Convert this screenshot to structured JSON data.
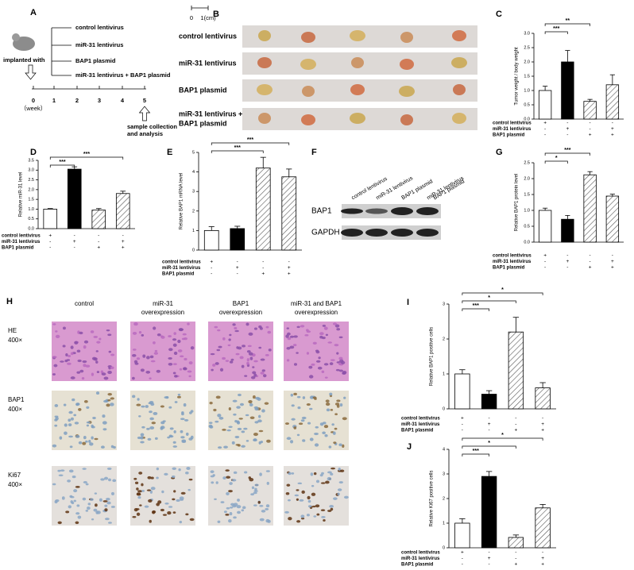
{
  "panel_a": {
    "label": "A",
    "groups": [
      "control lentivirus",
      "miR-31 lentivirus",
      "BAP1 plasmid",
      "miR-31 lentivirus + BAP1 plasmid"
    ],
    "implant": "implanted with",
    "weeks": [
      "0",
      "1",
      "2",
      "3",
      "4",
      "5"
    ],
    "unit": "（week）",
    "endpoint": [
      "sample collection",
      "and analysis"
    ]
  },
  "panel_b": {
    "label": "B",
    "scale": [
      "0",
      "1(cm)"
    ],
    "rows": [
      [
        "control lentivirus"
      ],
      [
        "miR-31 lentivirus"
      ],
      [
        "BAP1 plasmid"
      ],
      [
        "miR-31 lentivirus +",
        "BAP1 plasmid"
      ]
    ]
  },
  "panel_f": {
    "label": "F",
    "lanes": [
      [
        "control lentivirus"
      ],
      [
        "miR-31 lentivirus"
      ],
      [
        "BAP1 plasmid"
      ],
      [
        "miR-31 lentivirus",
        "BAP1 plasmid"
      ]
    ],
    "rows": [
      "BAP1",
      "GAPDH"
    ]
  },
  "panel_h": {
    "label": "H",
    "columns": [
      [
        "control"
      ],
      [
        "miR-31",
        "overexpression"
      ],
      [
        "BAP1",
        "overexpression"
      ],
      [
        "miR-31 and BAP1",
        "overexpression"
      ]
    ],
    "rows": [
      [
        "HE",
        "400×"
      ],
      [
        "BAP1",
        "400×"
      ],
      [
        "Ki67",
        "400×"
      ]
    ]
  },
  "chart_data": [
    {
      "type": "bar",
      "label": "C",
      "ylabel": "Tumor weight / body weight",
      "values": [
        1.0,
        2.0,
        0.62,
        1.2
      ],
      "errors": [
        0.15,
        0.4,
        0.07,
        0.35
      ],
      "fills": [
        "#ffffff",
        "#000000",
        "hatch",
        "hatch"
      ],
      "ylim": [
        0,
        3
      ],
      "yticks": [
        {
          "value": 0,
          "label": "0.0"
        },
        0.5,
        {
          "value": 1,
          "label": "1.0"
        },
        1.5,
        {
          "value": 2,
          "label": "2.0"
        },
        2.5,
        {
          "value": 3,
          "label": "3.0"
        }
      ],
      "annotations": [
        {
          "from": 0,
          "to": 1,
          "label": "***"
        },
        {
          "from": 0,
          "to": 2,
          "label": "**"
        }
      ],
      "conditions": [
        {
          "name": "control lentivirus",
          "signs": [
            "+",
            "-",
            "-",
            "-"
          ]
        },
        {
          "name": "miR-31 lentivirus",
          "signs": [
            "-",
            "+",
            "-",
            "+"
          ]
        },
        {
          "name": "BAP1 plasmid",
          "signs": [
            "-",
            "-",
            "+",
            "+"
          ]
        }
      ]
    },
    {
      "type": "bar",
      "label": "D",
      "ylabel": "Relative miR-31 level",
      "values": [
        1.0,
        3.05,
        0.95,
        1.8
      ],
      "errors": [
        0.03,
        0.12,
        0.08,
        0.12
      ],
      "fills": [
        "#ffffff",
        "#000000",
        "hatch",
        "hatch"
      ],
      "ylim": [
        0,
        3.5
      ],
      "yticks": [
        {
          "value": 0,
          "label": "0.0"
        },
        0.5,
        {
          "value": 1,
          "label": "1.0"
        },
        1.5,
        {
          "value": 2,
          "label": "2.0"
        },
        2.5,
        {
          "value": 3,
          "label": "3.0"
        },
        3.5
      ],
      "annotations": [
        {
          "from": 0,
          "to": 1,
          "label": "***"
        },
        {
          "from": 0,
          "to": 3,
          "label": "***"
        }
      ],
      "conditions": [
        {
          "name": "control lentivirus",
          "signs": [
            "+",
            "-",
            "-",
            "-"
          ]
        },
        {
          "name": "miR-31 lentivirus",
          "signs": [
            "-",
            "+",
            "-",
            "+"
          ]
        },
        {
          "name": "BAP1 plasmid",
          "signs": [
            "-",
            "-",
            "+",
            "+"
          ]
        }
      ]
    },
    {
      "type": "bar",
      "label": "E",
      "ylabel": "Relative BAP1 mRNA level",
      "values": [
        1.0,
        1.1,
        4.2,
        3.75
      ],
      "errors": [
        0.2,
        0.12,
        0.55,
        0.4
      ],
      "fills": [
        "#ffffff",
        "#000000",
        "hatch",
        "hatch"
      ],
      "ylim": [
        0,
        5
      ],
      "yticks": [
        0,
        1,
        2,
        3,
        4,
        5
      ],
      "annotations": [
        {
          "from": 0,
          "to": 2,
          "label": "***"
        },
        {
          "from": 0,
          "to": 3,
          "label": "***"
        }
      ],
      "conditions": [
        {
          "name": "control lentivirus",
          "signs": [
            "+",
            "-",
            "-",
            "-"
          ]
        },
        {
          "name": "miR-31 lentivirus",
          "signs": [
            "-",
            "+",
            "-",
            "+"
          ]
        },
        {
          "name": "BAP1 plasmid",
          "signs": [
            "-",
            "-",
            "+",
            "+"
          ]
        }
      ]
    },
    {
      "type": "bar",
      "label": "G",
      "ylabel": "Relative BAP1 protein level",
      "values": [
        1.0,
        0.72,
        2.12,
        1.45
      ],
      "errors": [
        0.07,
        0.12,
        0.1,
        0.06
      ],
      "fills": [
        "#ffffff",
        "#000000",
        "hatch",
        "hatch"
      ],
      "ylim": [
        0,
        2.5
      ],
      "yticks": [
        {
          "value": 0,
          "label": "0.0"
        },
        0.5,
        {
          "value": 1,
          "label": "1.0"
        },
        1.5,
        {
          "value": 2,
          "label": "2.0"
        },
        2.5
      ],
      "annotations": [
        {
          "from": 0,
          "to": 1,
          "label": "*"
        },
        {
          "from": 0,
          "to": 2,
          "label": "***"
        }
      ],
      "conditions": [
        {
          "name": "control lentivirus",
          "signs": [
            "+",
            "-",
            "-",
            "-"
          ]
        },
        {
          "name": "miR-31 lentivirus",
          "signs": [
            "-",
            "+",
            "-",
            "+"
          ]
        },
        {
          "name": "BAP1 plasmid",
          "signs": [
            "-",
            "-",
            "+",
            "+"
          ]
        }
      ]
    },
    {
      "type": "bar",
      "label": "I",
      "ylabel": "Relative BAP1 positive cells",
      "values": [
        1.0,
        0.42,
        2.2,
        0.6
      ],
      "errors": [
        0.12,
        0.1,
        0.42,
        0.15
      ],
      "fills": [
        "#ffffff",
        "#000000",
        "hatch",
        "hatch"
      ],
      "ylim": [
        0,
        3
      ],
      "yticks": [
        0,
        1,
        2,
        3
      ],
      "annotations": [
        {
          "from": 0,
          "to": 1,
          "label": "***"
        },
        {
          "from": 0,
          "to": 2,
          "label": "*"
        },
        {
          "from": 0,
          "to": 3,
          "label": "*"
        }
      ],
      "conditions": [
        {
          "name": "control lentivirus",
          "signs": [
            "+",
            "-",
            "-",
            "-"
          ]
        },
        {
          "name": "miR-31 lentivirus",
          "signs": [
            "-",
            "+",
            "-",
            "+"
          ]
        },
        {
          "name": "BAP1 plasmid",
          "signs": [
            "-",
            "-",
            "+",
            "+"
          ]
        }
      ]
    },
    {
      "type": "bar",
      "label": "J",
      "ylabel": "Relative Ki67 positive cells",
      "values": [
        1.0,
        2.9,
        0.42,
        1.62
      ],
      "errors": [
        0.18,
        0.2,
        0.1,
        0.14
      ],
      "fills": [
        "#ffffff",
        "#000000",
        "hatch",
        "hatch"
      ],
      "ylim": [
        0,
        4
      ],
      "yticks": [
        0,
        1,
        2,
        3,
        4
      ],
      "annotations": [
        {
          "from": 0,
          "to": 1,
          "label": "***"
        },
        {
          "from": 0,
          "to": 2,
          "label": "*"
        },
        {
          "from": 0,
          "to": 3,
          "label": "*"
        }
      ],
      "conditions": [
        {
          "name": "control lentivirus",
          "signs": [
            "+",
            "-",
            "-",
            "-"
          ]
        },
        {
          "name": "miR-31 lentivirus",
          "signs": [
            "-",
            "+",
            "-",
            "+"
          ]
        },
        {
          "name": "BAP1 plasmid",
          "signs": [
            "-",
            "-",
            "+",
            "+"
          ]
        }
      ]
    }
  ]
}
